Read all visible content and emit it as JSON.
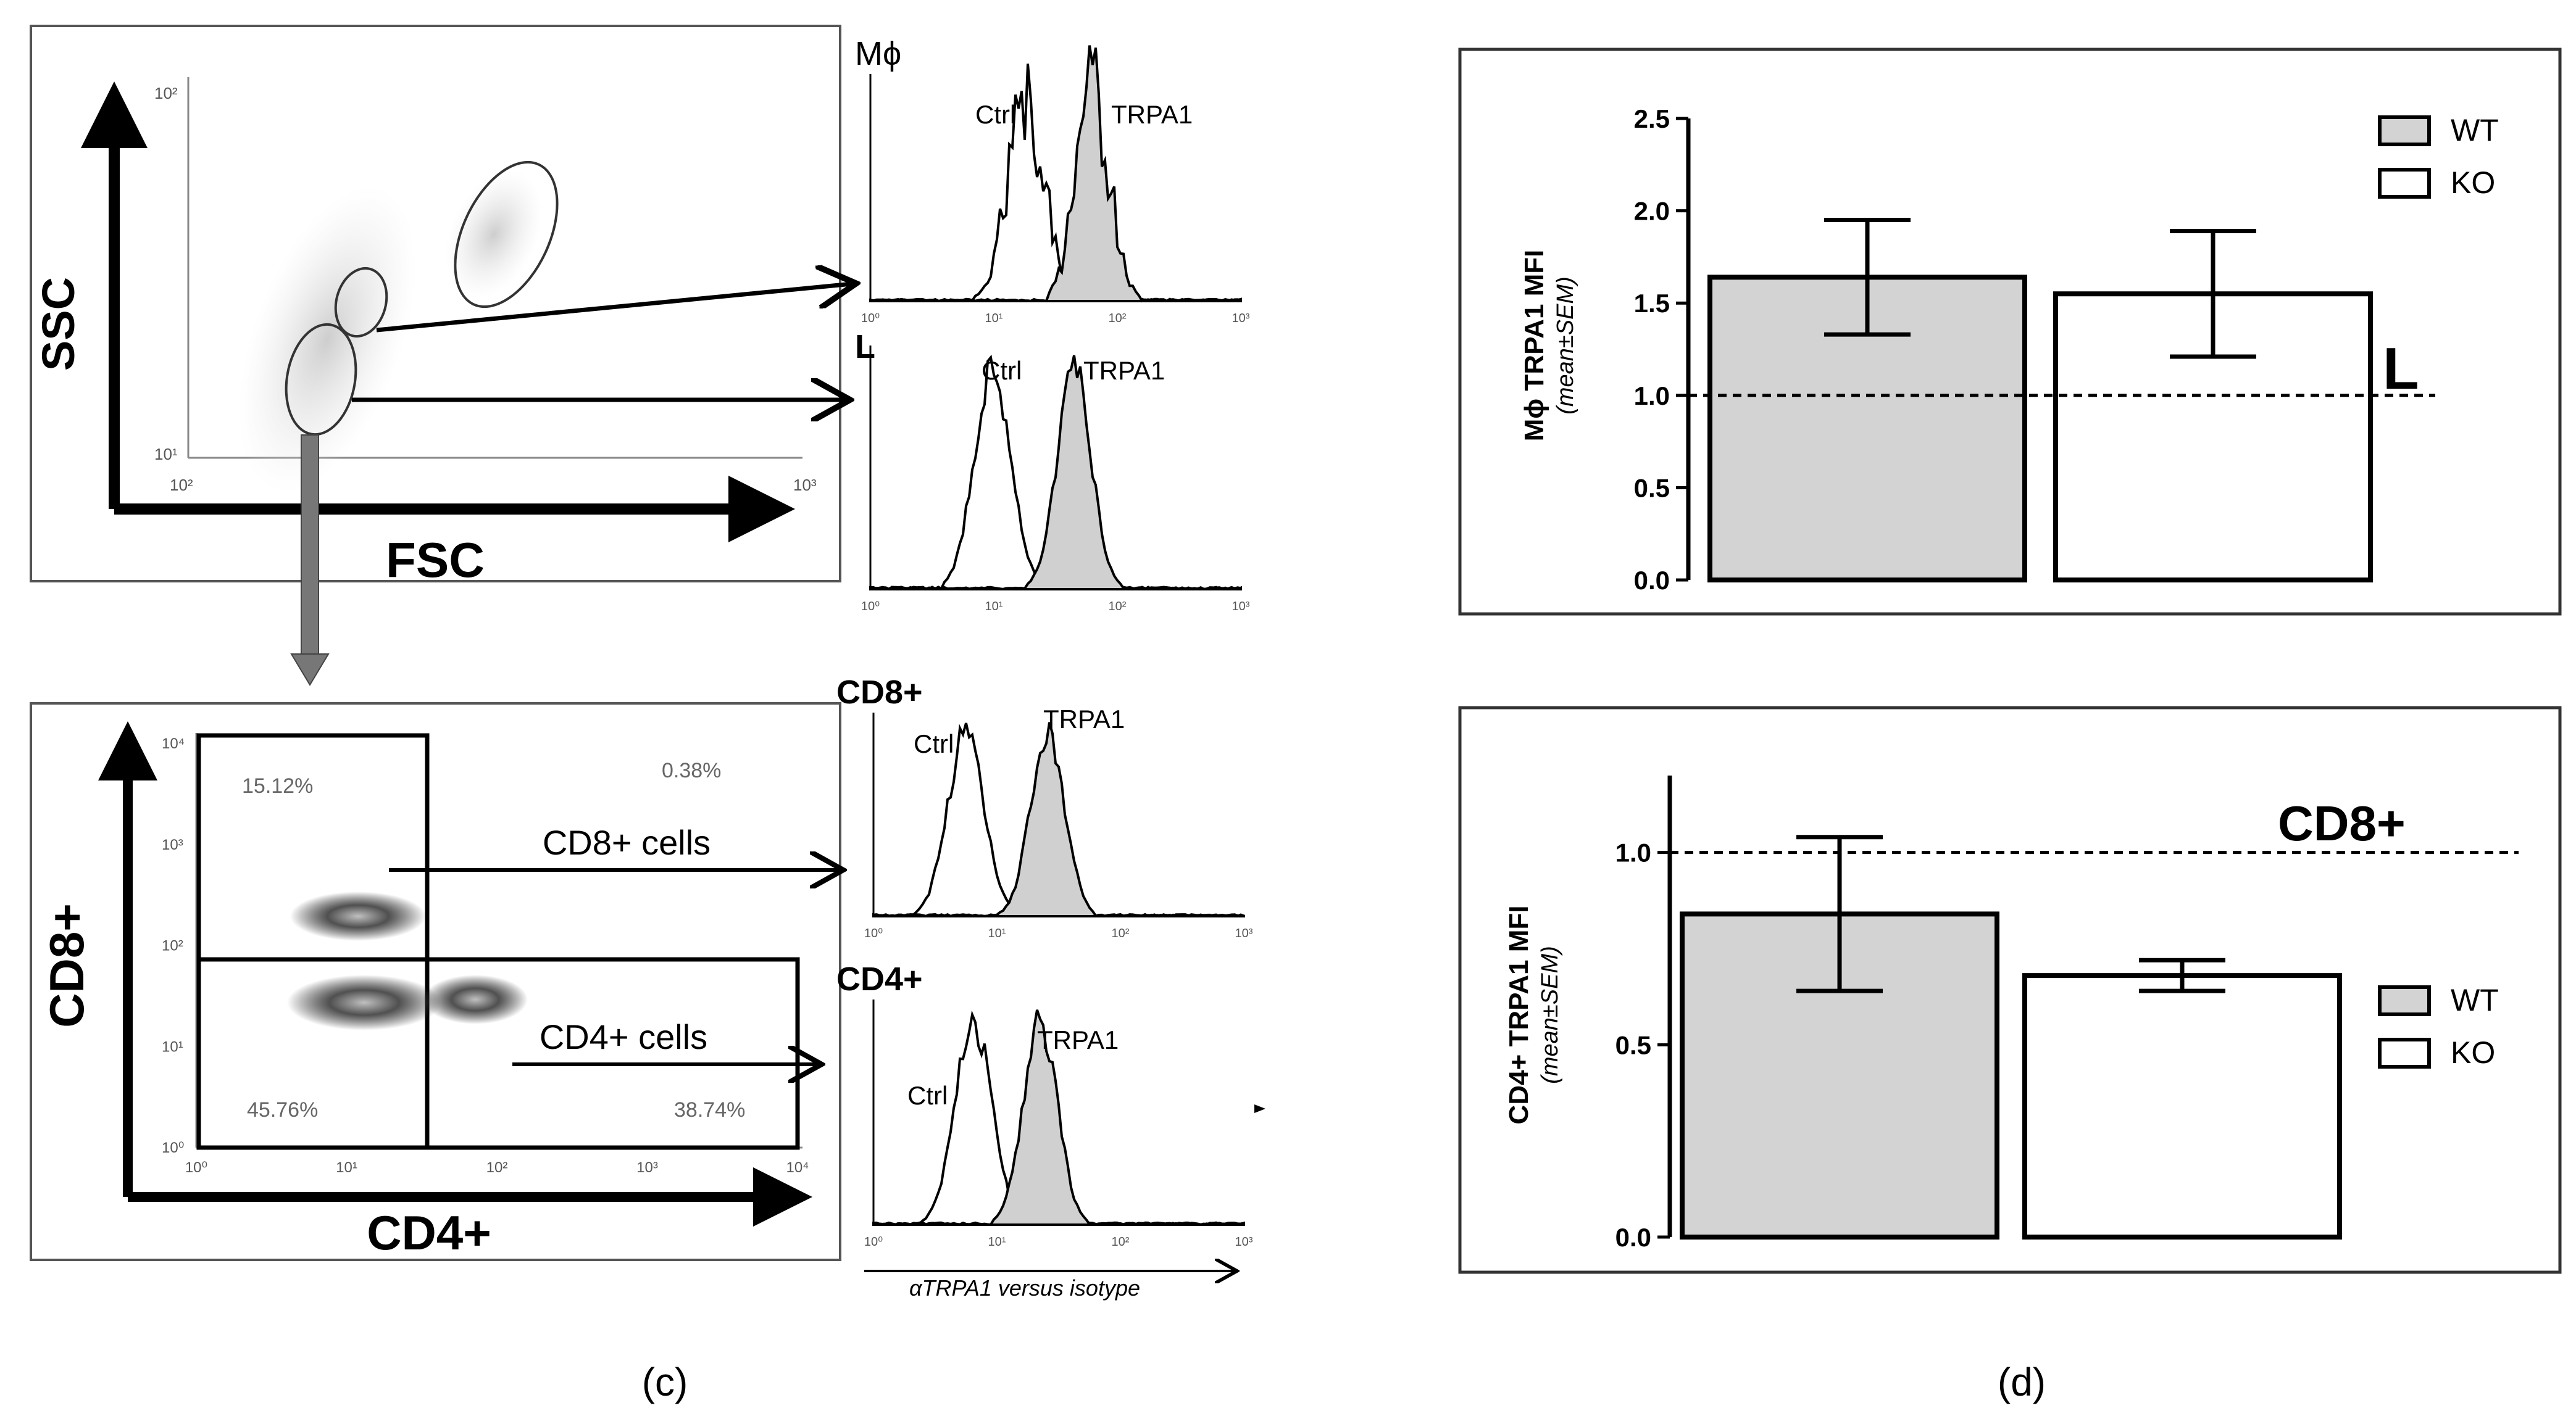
{
  "panel_c": {
    "caption": "(c)",
    "scatter1": {
      "y_label": "SSC",
      "x_label": "FSC",
      "tick_y_top": "10²",
      "tick_y_bottom": "10¹",
      "tick_x_left": "10²",
      "tick_x_right": "10³"
    },
    "scatter2": {
      "y_label": "CD8+",
      "x_label": "CD4+",
      "x_ticks": [
        "10⁰",
        "10¹",
        "10²",
        "10³",
        "10⁴"
      ],
      "y_ticks": [
        "10⁰",
        "10¹",
        "10²",
        "10³",
        "10⁴"
      ],
      "quadrants": {
        "upper_left": "15.12%",
        "upper_right": "0.38%",
        "lower_left": "45.76%",
        "lower_right": "38.74%"
      },
      "arrow_cd8": "CD8+ cells",
      "arrow_cd4": "CD4+ cells"
    },
    "histograms": [
      {
        "title": "Mϕ",
        "ctrl_label": "Ctrl",
        "trpa1_label": "TRPA1",
        "x_ticks": [
          "10⁰",
          "10¹",
          "10²",
          "10³"
        ]
      },
      {
        "title": "L",
        "ctrl_label": "Ctrl",
        "trpa1_label": "TRPA1",
        "x_ticks": [
          "10⁰",
          "10¹",
          "10²",
          "10³"
        ]
      },
      {
        "title": "CD8+",
        "ctrl_label": "Ctrl",
        "trpa1_label": "TRPA1",
        "x_ticks": [
          "10⁰",
          "10¹",
          "10²",
          "10³"
        ]
      },
      {
        "title": "CD4+",
        "ctrl_label": "Ctrl",
        "trpa1_label": "TRPA1",
        "x_ticks": [
          "10⁰",
          "10¹",
          "10²",
          "10³"
        ]
      }
    ],
    "hist_axis_label": "αTRPA1 versus isotype"
  },
  "panel_d": {
    "caption": "(d)"
  },
  "colors": {
    "wt_fill": "#d3d3d3",
    "ko_fill": "#ffffff",
    "line": "#000000"
  },
  "chart_data": [
    {
      "type": "bar",
      "categories": [
        "WT",
        "KO"
      ],
      "values": [
        1.64,
        1.55
      ],
      "error": [
        0.31,
        0.34
      ],
      "ylabel": "Mϕ TRPA1 MFI",
      "ylabel_sub": "(mean±SEM)",
      "ylim": [
        0,
        2.5
      ],
      "yticks": [
        "0.0",
        "0.5",
        "1.0",
        "1.5",
        "2.0",
        "2.5"
      ],
      "reference_line": 1.0,
      "reference_label": "L",
      "legend": [
        "WT",
        "KO"
      ],
      "legend_position": "top-right"
    },
    {
      "type": "bar",
      "categories": [
        "WT",
        "KO"
      ],
      "values": [
        0.84,
        0.68
      ],
      "error": [
        0.2,
        0.04
      ],
      "ylabel": "CD4+ TRPA1 MFI",
      "ylabel_sub": "(mean±SEM)",
      "ylim": [
        0,
        1.2
      ],
      "yticks": [
        "0.0",
        "0.5",
        "1.0"
      ],
      "reference_line": 1.0,
      "reference_label": "CD8+",
      "legend": [
        "WT",
        "KO"
      ],
      "legend_position": "right"
    }
  ]
}
